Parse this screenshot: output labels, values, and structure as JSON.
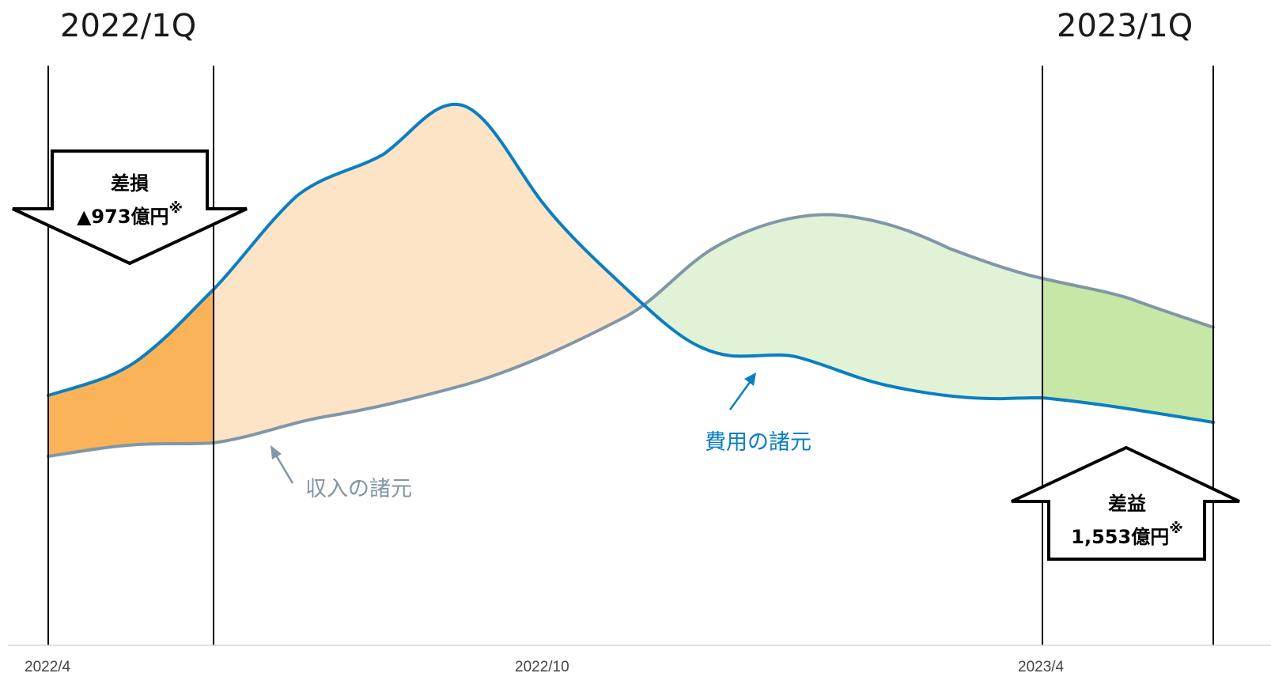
{
  "periods": {
    "left": "2022/1Q",
    "right": "2023/1Q"
  },
  "timeline": {
    "start": "2022/4",
    "middle": "2022/10",
    "end": "2023/4"
  },
  "loss_box": {
    "title": "差損",
    "amount": "▲973億円",
    "note_mark": "※"
  },
  "gain_box": {
    "title": "差益",
    "amount": "1,553億円",
    "note_mark": "※"
  },
  "labels": {
    "revenue": "収入の諸元",
    "cost": "費用の諸元"
  },
  "colors": {
    "cost_line": "#0a7ec2",
    "revenue_line": "#8196a6",
    "loss_fill_highlight": "#fbb35a",
    "loss_fill_light": "#fde4c6",
    "gain_fill_light": "#e1f2d7",
    "gain_fill_highlight": "#c7e7a7"
  }
}
